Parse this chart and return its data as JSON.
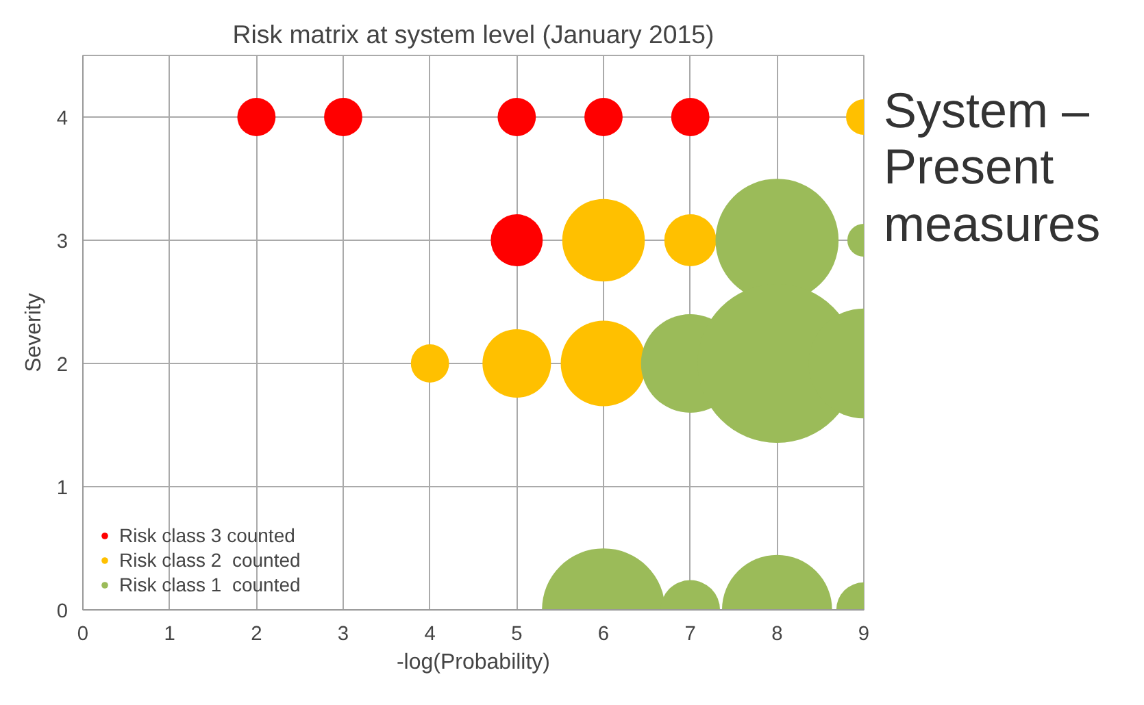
{
  "chart_data": {
    "type": "bubble",
    "title": "Risk matrix at system level (January 2015)",
    "xlabel": "-log(Probability)",
    "ylabel": "Severity",
    "xlim": [
      0,
      9
    ],
    "ylim": [
      0,
      4.5
    ],
    "xticks": [
      0,
      1,
      2,
      3,
      4,
      5,
      6,
      7,
      8,
      9
    ],
    "yticks": [
      0,
      1,
      2,
      3,
      4
    ],
    "grid": true,
    "legend": "bottom left",
    "annotations": [
      "System – Present measures"
    ],
    "series": [
      {
        "name": "Risk class 3 counted",
        "color": "#ff0000",
        "x": [
          2,
          3,
          5,
          6,
          7,
          5
        ],
        "values": [
          4,
          4,
          4,
          4,
          4,
          3
        ],
        "sizes": [
          0.058,
          0.058,
          0.058,
          0.058,
          0.058,
          0.107
        ]
      },
      {
        "name": "Risk class 2  counted",
        "color": "#ffc000",
        "x": [
          9,
          6,
          7,
          4,
          5,
          6
        ],
        "values": [
          4,
          3,
          3,
          2,
          2,
          2
        ],
        "sizes": [
          0.05,
          0.27,
          0.107,
          0.058,
          0.186,
          0.29
        ]
      },
      {
        "name": "Risk class 1  counted",
        "color": "#9bbb59",
        "x": [
          8,
          9,
          7,
          8,
          9,
          6,
          7,
          8,
          9
        ],
        "values": [
          3,
          3,
          2,
          2,
          2,
          0,
          0,
          0,
          0
        ],
        "sizes": [
          0.6,
          0.043,
          0.385,
          1,
          0.48,
          0.6,
          0.14,
          0.48,
          0.12
        ]
      }
    ]
  }
}
